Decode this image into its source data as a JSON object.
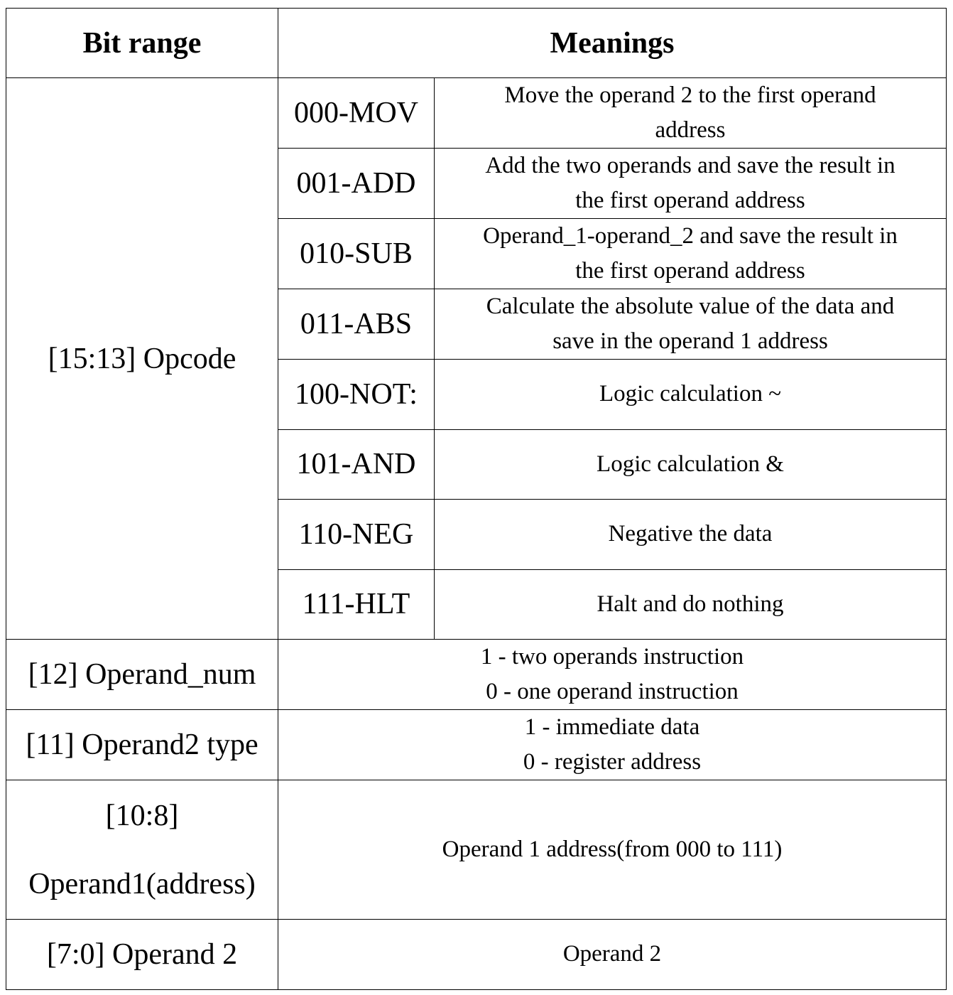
{
  "headers": {
    "bit_range": "Bit range",
    "meanings": "Meanings"
  },
  "opcode": {
    "field": "[15:13] Opcode",
    "rows": [
      {
        "code": "000-MOV",
        "lines": [
          "Move the operand 2 to the first operand",
          "address"
        ]
      },
      {
        "code": "001-ADD",
        "lines": [
          "Add the two operands and save the result in",
          "the first operand address"
        ]
      },
      {
        "code": "010-SUB",
        "lines": [
          "Operand_1-operand_2 and save the result in",
          "the first operand address"
        ]
      },
      {
        "code": "011-ABS",
        "lines": [
          "Calculate the absolute value of the data and",
          "save in the operand 1 address"
        ]
      },
      {
        "code": "100-NOT:",
        "lines": [
          "Logic calculation ~"
        ]
      },
      {
        "code": "101-AND",
        "lines": [
          "Logic calculation &"
        ]
      },
      {
        "code": "110-NEG",
        "lines": [
          "Negative the data"
        ]
      },
      {
        "code": "111-HLT",
        "lines": [
          "Halt and do nothing"
        ]
      }
    ]
  },
  "fields": [
    {
      "name": "[12] Operand_num",
      "lines": [
        "1 - two operands instruction",
        "0 - one operand instruction"
      ]
    },
    {
      "name": "[11] Operand2 type",
      "lines": [
        "1 - immediate data",
        "0 - register address"
      ]
    },
    {
      "name_lines": [
        "[10:8]",
        "Operand1(address)"
      ],
      "lines": [
        "Operand 1 address(from 000 to 111)"
      ]
    },
    {
      "name": "[7:0] Operand 2",
      "lines": [
        "Operand 2"
      ]
    }
  ]
}
